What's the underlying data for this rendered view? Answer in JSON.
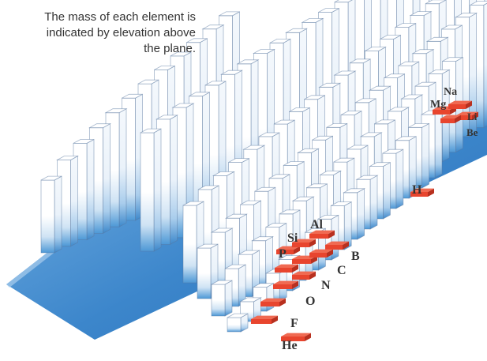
{
  "caption": "The mass of each element is indicated by elevation above the plane.",
  "colors": {
    "plane": "#3f88cc",
    "bar_white": "#ffffff",
    "bar_blue": "#4d98d6",
    "highlight": "#e8452e",
    "label": "#333333"
  },
  "element_labels": [
    "Na",
    "Mg",
    "Li",
    "Be",
    "H",
    "Al",
    "Si",
    "P",
    "B",
    "C",
    "N",
    "O",
    "F",
    "He"
  ]
}
